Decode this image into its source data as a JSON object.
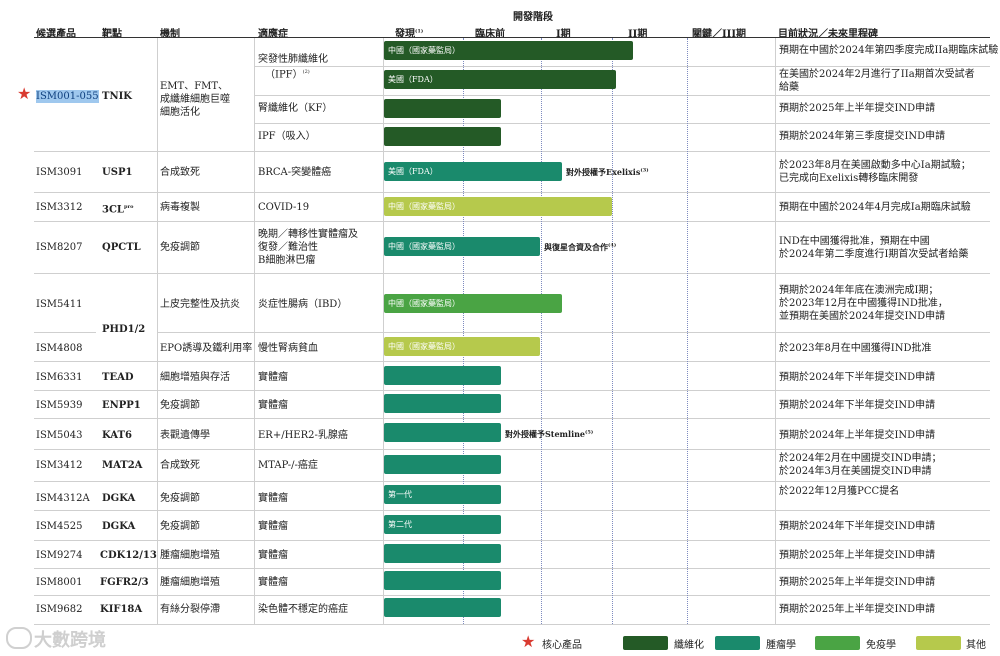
{
  "header": {
    "dev_stage": "開發階段",
    "candidate": "候選產品",
    "target": "靶點",
    "mechanism": "機制",
    "indication": "適應症",
    "discovery": "發現",
    "discovery_sup": "(1)",
    "preclinical": "臨床前",
    "phase1": "I期",
    "phase2": "II期",
    "pivotal": "關鍵／III期",
    "status": "目前狀況／未來里程碑"
  },
  "rows": {
    "r1": {
      "candidate": "ISM001-055",
      "target": "TNIK",
      "mechanism_lines": [
        "EMT、FMT、",
        "成纖維細胞巨噬",
        "細胞活化"
      ],
      "ind_a": {
        "lines": [
          "突發性肺纖維化",
          "（IPF）"
        ],
        "sup": "(2)",
        "bar": "中國（國家藥監局）",
        "status": [
          "預期在中國於2024年第四季度完成IIa期臨床試驗"
        ]
      },
      "ind_b": {
        "bar": "美國（FDA）",
        "status": [
          "在美國於2024年2月進行了IIa期首次受試者",
          "給藥"
        ]
      },
      "ind_c": {
        "lines": [
          "腎纖維化（KF）"
        ],
        "status": [
          "預期於2025年上半年提交IND申請"
        ]
      },
      "ind_d": {
        "lines": [
          "IPF（吸入）"
        ],
        "status": [
          "預期於2024年第三季度提交IND申請"
        ]
      }
    },
    "r2": {
      "candidate": "ISM3091",
      "target": "USP1",
      "mechanism": "合成致死",
      "indication": "BRCA-突變體癌",
      "bar": "美國（FDA）",
      "note": "對外授權予Exelixis",
      "note_sup": "(3)",
      "status": [
        "於2023年8月在美國啟動多中心Ia期試驗；",
        "已完成向Exelixis轉移臨床開發"
      ]
    },
    "r3": {
      "candidate": "ISM3312",
      "target": "3CL",
      "target_sup": "pro",
      "mechanism": "病毒複製",
      "indication": "COVID-19",
      "bar": "中國（國家藥監局）",
      "status": [
        "預期在中國於2024年4月完成Ia期臨床試驗"
      ]
    },
    "r4": {
      "candidate": "ISM8207",
      "target": "QPCTL",
      "mechanism": "免疫調節",
      "indication_lines": [
        "晚期／轉移性實體瘤及",
        "復發／難治性",
        "B細胞淋巴瘤"
      ],
      "bar": "中國（國家藥監局）",
      "note": "與復星合資及合作",
      "note_sup": "(4)",
      "status": [
        "IND在中國獲得批准，預期在中國",
        "於2024年第二季度進行I期首次受試者給藥"
      ]
    },
    "r5": {
      "candidate": "ISM5411",
      "mechanism": "上皮完整性及抗炎",
      "indication": "炎症性腸病（IBD）",
      "bar": "中國（國家藥監局）",
      "status": [
        "預期於2024年年底在澳洲完成I期；",
        "於2023年12月在中國獲得IND批准，",
        "並預期在美國於2024年提交IND申請"
      ]
    },
    "r5_target": "PHD1/2",
    "r6": {
      "candidate": "ISM4808",
      "mechanism": "EPO誘導及鐵利用率",
      "indication": "慢性腎病貧血",
      "bar": "中國（國家藥監局）",
      "status": [
        "於2023年8月在中國獲得IND批准"
      ]
    },
    "r7": {
      "candidate": "ISM6331",
      "target": "TEAD",
      "mechanism": "細胞增殖與存活",
      "indication": "實體瘤",
      "status": [
        "預期於2024年下半年提交IND申請"
      ]
    },
    "r8": {
      "candidate": "ISM5939",
      "target": "ENPP1",
      "mechanism": "免疫調節",
      "indication": "實體瘤",
      "status": [
        "預期於2024年下半年提交IND申請"
      ]
    },
    "r9": {
      "candidate": "ISM5043",
      "target": "KAT6",
      "mechanism": "表觀遺傳學",
      "indication": "ER+/HER2-乳腺癌",
      "note": "對外授權予Stemline",
      "note_sup": "(5)",
      "status": [
        "預期於2024年上半年提交IND申請"
      ]
    },
    "r10": {
      "candidate": "ISM3412",
      "target": "MAT2A",
      "mechanism": "合成致死",
      "indication": "MTAP-/-癌症",
      "status": [
        "於2024年2月在中國提交IND申請；",
        "於2024年3月在美國提交IND申請"
      ]
    },
    "r11": {
      "candidate": "ISM4312A",
      "target": "DGKA",
      "mechanism": "免疫調節",
      "indication": "實體瘤",
      "bar": "第一代",
      "status": [
        "於2022年12月獲PCC提名"
      ]
    },
    "r12": {
      "candidate": "ISM4525",
      "target": "DGKA",
      "mechanism": "免疫調節",
      "indication": "實體瘤",
      "bar": "第二代",
      "status": [
        "預期於2024年下半年提交IND申請"
      ]
    },
    "r13": {
      "candidate": "ISM9274",
      "target": "CDK12/13",
      "mechanism": "腫瘤細胞增殖",
      "indication": "實體瘤",
      "status": [
        "預期於2025年上半年提交IND申請"
      ]
    },
    "r14": {
      "candidate": "ISM8001",
      "target": "FGFR2/3",
      "mechanism": "腫瘤細胞增殖",
      "indication": "實體瘤",
      "status": [
        "預期於2025年上半年提交IND申請"
      ]
    },
    "r15": {
      "candidate": "ISM9682",
      "target": "KIF18A",
      "mechanism": "有絲分裂停滯",
      "indication": "染色體不穩定的癌症",
      "status": [
        "預期於2025年上半年提交IND申請"
      ]
    }
  },
  "legend": {
    "core": "核心產品",
    "fibrosis": "纖維化",
    "oncology": "腫瘤學",
    "immunology": "免疫學",
    "other": "其他"
  },
  "watermark": "大數跨境",
  "colors": {
    "fibrosis": "#245a26",
    "oncology": "#1a8a6c",
    "immunology": "#4aa444",
    "other": "#b6c94c",
    "star": "#d93a30"
  }
}
